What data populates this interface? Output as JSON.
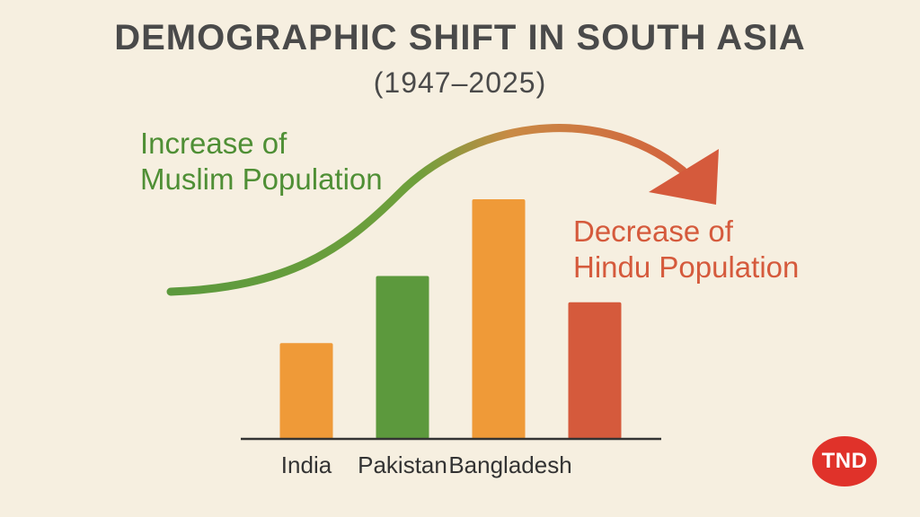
{
  "title": "DEMOGRAPHIC SHIFT IN SOUTH ASIA",
  "subtitle": "(1947–2025)",
  "annotations": {
    "increase": [
      "Increase of",
      "Muslim Population"
    ],
    "decrease": [
      "Decrease of",
      "Hindu Population"
    ]
  },
  "badge": "TND",
  "colors": {
    "background": "#f6efe0",
    "orange": "#ef9a38",
    "green": "#5c993d",
    "red": "#d55a3c",
    "axis": "#333333",
    "badge": "#e0322a"
  },
  "chart_data": {
    "type": "bar",
    "title": "DEMOGRAPHIC SHIFT IN SOUTH ASIA",
    "subtitle": "(1947–2025)",
    "categories": [
      "India",
      "Pakistan",
      "Bangladesh",
      ""
    ],
    "values": [
      40,
      68,
      100,
      57
    ],
    "bar_colors": [
      "#ef9a38",
      "#5c993d",
      "#ef9a38",
      "#d55a3c"
    ],
    "ylim": [
      0,
      100
    ],
    "grid": false,
    "legend": "none",
    "xlabel": "",
    "ylabel": ""
  }
}
